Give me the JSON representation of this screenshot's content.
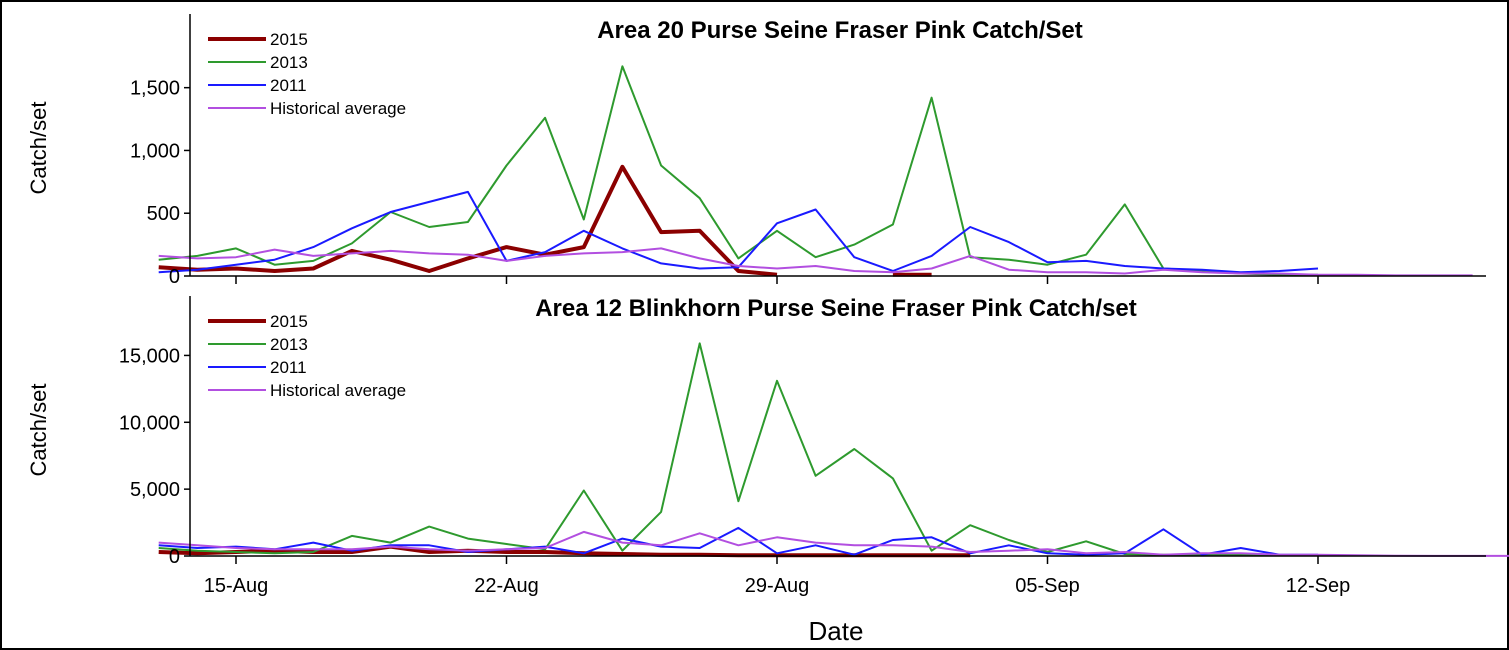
{
  "chart_data": [
    {
      "type": "line",
      "title": "Area 20 Purse Seine Fraser Pink Catch/Set",
      "xlabel": "",
      "ylabel": "Catch/set",
      "ylim": [
        0,
        1800
      ],
      "yticks": [
        0,
        500,
        1000,
        1500
      ],
      "ytick_labels": [
        "0",
        "500",
        "1,000",
        "1,500"
      ],
      "legend_position": "top-left",
      "series": [
        {
          "name": "2015",
          "color": "#8b0000",
          "width": 4,
          "x": [
            "2015-08-13",
            "2015-08-14",
            "2015-08-15",
            "2015-08-16",
            "2015-08-17",
            "2015-08-18",
            "2015-08-19",
            "2015-08-20",
            "2015-08-21",
            "2015-08-22",
            "2015-08-23",
            "2015-08-24",
            "2015-08-25",
            "2015-08-26",
            "2015-08-27",
            "2015-08-28",
            "2015-08-29",
            "2015-08-30",
            "2015-08-31",
            "2015-09-01",
            "2015-09-02",
            "2015-09-03"
          ],
          "y": [
            70,
            50,
            60,
            40,
            60,
            200,
            130,
            40,
            140,
            230,
            170,
            230,
            870,
            350,
            360,
            40,
            10,
            null,
            null,
            10,
            10,
            null
          ]
        },
        {
          "name": "2013",
          "color": "#2e9a2e",
          "width": 2,
          "x": [
            "2015-08-13",
            "2015-08-14",
            "2015-08-15",
            "2015-08-16",
            "2015-08-17",
            "2015-08-18",
            "2015-08-19",
            "2015-08-20",
            "2015-08-21",
            "2015-08-22",
            "2015-08-23",
            "2015-08-24",
            "2015-08-25",
            "2015-08-26",
            "2015-08-27",
            "2015-08-28",
            "2015-08-29",
            "2015-08-30",
            "2015-08-31",
            "2015-09-01",
            "2015-09-02",
            "2015-09-03",
            "2015-09-04",
            "2015-09-05",
            "2015-09-06",
            "2015-09-07",
            "2015-09-08",
            "2015-09-09",
            "2015-09-10",
            "2015-09-11",
            "2015-09-12"
          ],
          "y": [
            130,
            160,
            220,
            90,
            120,
            260,
            510,
            390,
            430,
            880,
            1260,
            450,
            1670,
            880,
            620,
            140,
            360,
            150,
            250,
            410,
            1420,
            150,
            130,
            90,
            170,
            570,
            60,
            40,
            20,
            10,
            10
          ]
        },
        {
          "name": "2011",
          "color": "#1a1aff",
          "width": 2,
          "x": [
            "2015-08-13",
            "2015-08-14",
            "2015-08-15",
            "2015-08-16",
            "2015-08-17",
            "2015-08-18",
            "2015-08-19",
            "2015-08-20",
            "2015-08-21",
            "2015-08-22",
            "2015-08-23",
            "2015-08-24",
            "2015-08-25",
            "2015-08-26",
            "2015-08-27",
            "2015-08-28",
            "2015-08-29",
            "2015-08-30",
            "2015-08-31",
            "2015-09-01",
            "2015-09-02",
            "2015-09-03",
            "2015-09-04",
            "2015-09-05",
            "2015-09-06",
            "2015-09-07",
            "2015-09-08",
            "2015-09-09",
            "2015-09-10",
            "2015-09-11",
            "2015-09-12"
          ],
          "y": [
            30,
            50,
            90,
            130,
            230,
            380,
            510,
            590,
            670,
            120,
            190,
            360,
            220,
            100,
            60,
            70,
            420,
            530,
            150,
            40,
            160,
            390,
            270,
            110,
            120,
            80,
            60,
            50,
            30,
            40,
            60
          ]
        },
        {
          "name": "Historical average",
          "color": "#b24fe0",
          "width": 2,
          "x": [
            "2015-08-13",
            "2015-08-14",
            "2015-08-15",
            "2015-08-16",
            "2015-08-17",
            "2015-08-18",
            "2015-08-19",
            "2015-08-20",
            "2015-08-21",
            "2015-08-22",
            "2015-08-23",
            "2015-08-24",
            "2015-08-25",
            "2015-08-26",
            "2015-08-27",
            "2015-08-28",
            "2015-08-29",
            "2015-08-30",
            "2015-08-31",
            "2015-09-01",
            "2015-09-02",
            "2015-09-03",
            "2015-09-04",
            "2015-09-05",
            "2015-09-06",
            "2015-09-07",
            "2015-09-08",
            "2015-09-09",
            "2015-09-10",
            "2015-09-11",
            "2015-09-12",
            "2015-09-13",
            "2015-09-14",
            "2015-09-15",
            "2015-09-16"
          ],
          "y": [
            160,
            140,
            150,
            210,
            160,
            180,
            200,
            180,
            170,
            120,
            160,
            180,
            190,
            220,
            140,
            80,
            60,
            80,
            40,
            30,
            60,
            160,
            50,
            30,
            30,
            20,
            50,
            30,
            20,
            20,
            10,
            10,
            5,
            5,
            5
          ]
        }
      ]
    },
    {
      "type": "line",
      "title": "Area 12 Blinkhorn Purse Seine Fraser Pink Catch/set",
      "xlabel": "Date",
      "ylabel": "Catch/set",
      "ylim": [
        0,
        17500
      ],
      "yticks": [
        0,
        5000,
        10000,
        15000
      ],
      "ytick_labels": [
        "0",
        "5,000",
        "10,000",
        "15,000"
      ],
      "xticks": [
        "2015-08-15",
        "2015-08-22",
        "2015-08-29",
        "2015-09-05",
        "2015-09-12"
      ],
      "xtick_labels": [
        "15-Aug",
        "22-Aug",
        "29-Aug",
        "05-Sep",
        "12-Sep"
      ],
      "legend_position": "top-left",
      "series": [
        {
          "name": "2015",
          "color": "#8b0000",
          "width": 4,
          "x": [
            "2015-08-13",
            "2015-08-14",
            "2015-08-15",
            "2015-08-16",
            "2015-08-17",
            "2015-08-18",
            "2015-08-19",
            "2015-08-20",
            "2015-08-21",
            "2015-08-22",
            "2015-08-23",
            "2015-08-24",
            "2015-08-25",
            "2015-08-26",
            "2015-08-27",
            "2015-08-28",
            "2015-08-29",
            "2015-08-30",
            "2015-08-31",
            "2015-09-01",
            "2015-09-02",
            "2015-09-03"
          ],
          "y": [
            300,
            200,
            300,
            400,
            300,
            300,
            700,
            300,
            400,
            300,
            300,
            200,
            150,
            100,
            100,
            50,
            50,
            50,
            50,
            50,
            50,
            50
          ]
        },
        {
          "name": "2013",
          "color": "#2e9a2e",
          "width": 2,
          "x": [
            "2015-08-13",
            "2015-08-14",
            "2015-08-15",
            "2015-08-16",
            "2015-08-17",
            "2015-08-18",
            "2015-08-19",
            "2015-08-20",
            "2015-08-21",
            "2015-08-22",
            "2015-08-23",
            "2015-08-24",
            "2015-08-25",
            "2015-08-26",
            "2015-08-27",
            "2015-08-28",
            "2015-08-29",
            "2015-08-30",
            "2015-08-31",
            "2015-09-01",
            "2015-09-02",
            "2015-09-03",
            "2015-09-04",
            "2015-09-05",
            "2015-09-06",
            "2015-09-07",
            "2015-09-08",
            "2015-09-09",
            "2015-09-10",
            "2015-09-11",
            "2015-09-12"
          ],
          "y": [
            600,
            400,
            300,
            200,
            300,
            1500,
            1000,
            2200,
            1300,
            900,
            500,
            4900,
            400,
            3300,
            15900,
            4100,
            13100,
            6000,
            8000,
            5800,
            400,
            2300,
            1200,
            300,
            1100,
            150,
            100,
            100,
            100,
            50,
            50
          ]
        },
        {
          "name": "2011",
          "color": "#1a1aff",
          "width": 2,
          "x": [
            "2015-08-13",
            "2015-08-14",
            "2015-08-15",
            "2015-08-16",
            "2015-08-17",
            "2015-08-18",
            "2015-08-19",
            "2015-08-20",
            "2015-08-21",
            "2015-08-22",
            "2015-08-23",
            "2015-08-24",
            "2015-08-25",
            "2015-08-26",
            "2015-08-27",
            "2015-08-28",
            "2015-08-29",
            "2015-08-30",
            "2015-08-31",
            "2015-09-01",
            "2015-09-02",
            "2015-09-03",
            "2015-09-04",
            "2015-09-05",
            "2015-09-06",
            "2015-09-07",
            "2015-09-08",
            "2015-09-09",
            "2015-09-10",
            "2015-09-11",
            "2015-09-12"
          ],
          "y": [
            800,
            600,
            700,
            500,
            1000,
            400,
            800,
            800,
            300,
            500,
            700,
            200,
            1300,
            700,
            600,
            2100,
            200,
            800,
            100,
            1200,
            1400,
            200,
            800,
            200,
            100,
            200,
            2000,
            100,
            600,
            100,
            100
          ]
        },
        {
          "name": "Historical average",
          "color": "#b24fe0",
          "width": 2,
          "x": [
            "2015-08-13",
            "2015-08-14",
            "2015-08-15",
            "2015-08-16",
            "2015-08-17",
            "2015-08-18",
            "2015-08-19",
            "2015-08-20",
            "2015-08-21",
            "2015-08-22",
            "2015-08-23",
            "2015-08-24",
            "2015-08-25",
            "2015-08-26",
            "2015-08-27",
            "2015-08-28",
            "2015-08-29",
            "2015-08-30",
            "2015-08-31",
            "2015-09-01",
            "2015-09-02",
            "2015-09-03",
            "2015-09-04",
            "2015-09-05",
            "2015-09-06",
            "2015-09-07",
            "2015-09-08",
            "2015-09-09",
            "2015-09-10",
            "2015-09-11",
            "2015-09-12",
            "2015-09-13",
            "2015-09-14",
            "2015-09-15",
            "2015-09-16",
            "2015-09-17"
          ],
          "y": [
            1000,
            800,
            600,
            500,
            500,
            500,
            700,
            500,
            400,
            500,
            600,
            1800,
            1000,
            800,
            1700,
            800,
            1400,
            1000,
            800,
            800,
            700,
            300,
            400,
            500,
            200,
            300,
            100,
            200,
            200,
            100,
            100,
            50,
            20,
            10,
            5,
            5
          ]
        }
      ]
    }
  ]
}
